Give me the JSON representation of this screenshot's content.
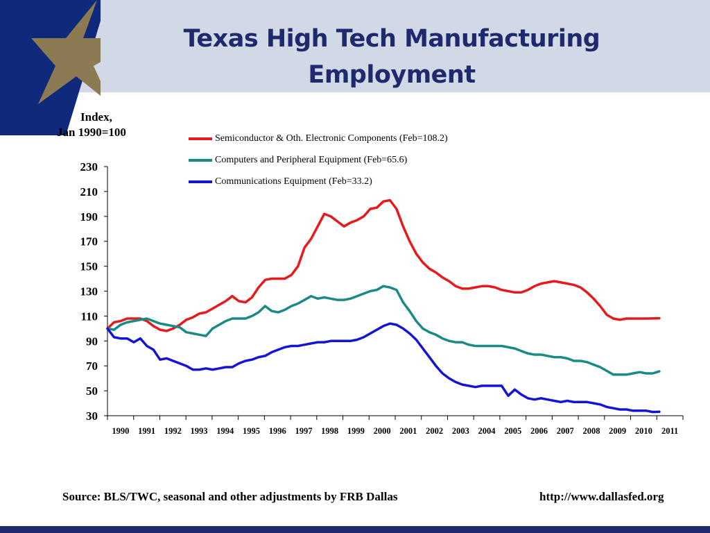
{
  "slide": {
    "title_line1": "Texas High Tech Manufacturing",
    "title_line2": "Employment"
  },
  "colors": {
    "header_bg": "#d1d9e6",
    "brand_blue": "#1f2a6e",
    "star_gold": "#8c7a52",
    "corner_blue": "#0f2a7a"
  },
  "icons": {
    "logo": "star-icon"
  },
  "y_unit": {
    "line1": "Index,",
    "line2": "Jan 1990=100"
  },
  "source": "Source: BLS/TWC, seasonal and other adjustments by FRB Dallas",
  "url": "http://www.dallasfed.org",
  "chart_data": {
    "type": "line",
    "ylim": [
      30,
      230
    ],
    "xlim": [
      1990,
      2011.9
    ],
    "y_ticks": [
      30,
      50,
      70,
      90,
      110,
      130,
      150,
      170,
      190,
      210,
      230
    ],
    "x_tick_labels": [
      "1990",
      "1991",
      "1992",
      "1993",
      "1994",
      "1995",
      "1996",
      "1997",
      "1998",
      "1999",
      "2000",
      "2001",
      "2002",
      "2003",
      "2004",
      "2005",
      "2006",
      "2007",
      "2008",
      "2009",
      "2010",
      "2011"
    ],
    "grid": false,
    "legend_position": "top-center",
    "series": [
      {
        "name": "Semiconductor & Oth. Electronic Components (Feb=108.2)",
        "color": "#e8191c",
        "points": [
          [
            1990.0,
            100
          ],
          [
            1990.25,
            105
          ],
          [
            1990.5,
            106
          ],
          [
            1990.75,
            108
          ],
          [
            1991.0,
            108
          ],
          [
            1991.25,
            108
          ],
          [
            1991.5,
            106
          ],
          [
            1991.75,
            102
          ],
          [
            1992.0,
            99
          ],
          [
            1992.25,
            98
          ],
          [
            1992.5,
            100
          ],
          [
            1992.75,
            103
          ],
          [
            1993.0,
            107
          ],
          [
            1993.25,
            109
          ],
          [
            1993.5,
            112
          ],
          [
            1993.75,
            113
          ],
          [
            1994.0,
            116
          ],
          [
            1994.25,
            119
          ],
          [
            1994.5,
            122
          ],
          [
            1994.75,
            126
          ],
          [
            1995.0,
            122
          ],
          [
            1995.25,
            121
          ],
          [
            1995.5,
            125
          ],
          [
            1995.75,
            133
          ],
          [
            1996.0,
            139
          ],
          [
            1996.25,
            140
          ],
          [
            1996.5,
            140
          ],
          [
            1996.75,
            140
          ],
          [
            1997.0,
            143
          ],
          [
            1997.25,
            150
          ],
          [
            1997.5,
            165
          ],
          [
            1997.75,
            172
          ],
          [
            1998.0,
            182
          ],
          [
            1998.25,
            192
          ],
          [
            1998.5,
            190
          ],
          [
            1998.75,
            186
          ],
          [
            1999.0,
            182
          ],
          [
            1999.25,
            185
          ],
          [
            1999.5,
            187
          ],
          [
            1999.75,
            190
          ],
          [
            2000.0,
            196
          ],
          [
            2000.25,
            197
          ],
          [
            2000.5,
            202
          ],
          [
            2000.75,
            203
          ],
          [
            2001.0,
            196
          ],
          [
            2001.25,
            182
          ],
          [
            2001.5,
            170
          ],
          [
            2001.75,
            160
          ],
          [
            2002.0,
            153
          ],
          [
            2002.25,
            148
          ],
          [
            2002.5,
            145
          ],
          [
            2002.75,
            141
          ],
          [
            2003.0,
            138
          ],
          [
            2003.25,
            134
          ],
          [
            2003.5,
            132
          ],
          [
            2003.75,
            132
          ],
          [
            2004.0,
            133
          ],
          [
            2004.25,
            134
          ],
          [
            2004.5,
            134
          ],
          [
            2004.75,
            133
          ],
          [
            2005.0,
            131
          ],
          [
            2005.25,
            130
          ],
          [
            2005.5,
            129
          ],
          [
            2005.75,
            129
          ],
          [
            2006.0,
            131
          ],
          [
            2006.25,
            134
          ],
          [
            2006.5,
            136
          ],
          [
            2006.75,
            137
          ],
          [
            2007.0,
            138
          ],
          [
            2007.25,
            137
          ],
          [
            2007.5,
            136
          ],
          [
            2007.75,
            135
          ],
          [
            2008.0,
            133
          ],
          [
            2008.25,
            129
          ],
          [
            2008.5,
            124
          ],
          [
            2008.75,
            118
          ],
          [
            2009.0,
            111
          ],
          [
            2009.25,
            108
          ],
          [
            2009.5,
            107
          ],
          [
            2009.75,
            108
          ],
          [
            2010.0,
            108
          ],
          [
            2010.25,
            108
          ],
          [
            2010.5,
            108
          ],
          [
            2011.0,
            108.2
          ]
        ]
      },
      {
        "name": "Computers and Peripheral Equipment (Feb=65.6)",
        "color": "#1a8a85",
        "points": [
          [
            1990.0,
            100
          ],
          [
            1990.25,
            99
          ],
          [
            1990.5,
            103
          ],
          [
            1990.75,
            105
          ],
          [
            1991.0,
            106
          ],
          [
            1991.25,
            107
          ],
          [
            1991.5,
            108
          ],
          [
            1991.75,
            106
          ],
          [
            1992.0,
            104
          ],
          [
            1992.25,
            103
          ],
          [
            1992.5,
            102
          ],
          [
            1992.75,
            101
          ],
          [
            1993.0,
            97
          ],
          [
            1993.25,
            96
          ],
          [
            1993.5,
            95
          ],
          [
            1993.75,
            94
          ],
          [
            1994.0,
            100
          ],
          [
            1994.25,
            103
          ],
          [
            1994.5,
            106
          ],
          [
            1994.75,
            108
          ],
          [
            1995.0,
            108
          ],
          [
            1995.25,
            108
          ],
          [
            1995.5,
            110
          ],
          [
            1995.75,
            113
          ],
          [
            1996.0,
            118
          ],
          [
            1996.25,
            114
          ],
          [
            1996.5,
            113
          ],
          [
            1996.75,
            115
          ],
          [
            1997.0,
            118
          ],
          [
            1997.25,
            120
          ],
          [
            1997.5,
            123
          ],
          [
            1997.75,
            126
          ],
          [
            1998.0,
            124
          ],
          [
            1998.25,
            125
          ],
          [
            1998.5,
            124
          ],
          [
            1998.75,
            123
          ],
          [
            1999.0,
            123
          ],
          [
            1999.25,
            124
          ],
          [
            1999.5,
            126
          ],
          [
            1999.75,
            128
          ],
          [
            2000.0,
            130
          ],
          [
            2000.25,
            131
          ],
          [
            2000.5,
            134
          ],
          [
            2000.75,
            133
          ],
          [
            2001.0,
            131
          ],
          [
            2001.25,
            121
          ],
          [
            2001.5,
            114
          ],
          [
            2001.75,
            106
          ],
          [
            2002.0,
            100
          ],
          [
            2002.25,
            97
          ],
          [
            2002.5,
            95
          ],
          [
            2002.75,
            92
          ],
          [
            2003.0,
            90
          ],
          [
            2003.25,
            89
          ],
          [
            2003.5,
            89
          ],
          [
            2003.75,
            87
          ],
          [
            2004.0,
            86
          ],
          [
            2004.25,
            86
          ],
          [
            2004.5,
            86
          ],
          [
            2004.75,
            86
          ],
          [
            2005.0,
            86
          ],
          [
            2005.25,
            85
          ],
          [
            2005.5,
            84
          ],
          [
            2005.75,
            82
          ],
          [
            2006.0,
            80
          ],
          [
            2006.25,
            79
          ],
          [
            2006.5,
            79
          ],
          [
            2006.75,
            78
          ],
          [
            2007.0,
            77
          ],
          [
            2007.25,
            77
          ],
          [
            2007.5,
            76
          ],
          [
            2007.75,
            74
          ],
          [
            2008.0,
            74
          ],
          [
            2008.25,
            73
          ],
          [
            2008.5,
            71
          ],
          [
            2008.75,
            69
          ],
          [
            2009.0,
            66
          ],
          [
            2009.25,
            63
          ],
          [
            2009.5,
            63
          ],
          [
            2009.75,
            63
          ],
          [
            2010.0,
            64
          ],
          [
            2010.25,
            65
          ],
          [
            2010.5,
            64
          ],
          [
            2010.75,
            64
          ],
          [
            2011.0,
            65.6
          ]
        ]
      },
      {
        "name": "Communications Equipment (Feb=33.2)",
        "color": "#1414d6",
        "points": [
          [
            1990.0,
            100
          ],
          [
            1990.25,
            93
          ],
          [
            1990.5,
            92
          ],
          [
            1990.75,
            92
          ],
          [
            1991.0,
            89
          ],
          [
            1991.25,
            92
          ],
          [
            1991.5,
            86
          ],
          [
            1991.75,
            83
          ],
          [
            1992.0,
            75
          ],
          [
            1992.25,
            76
          ],
          [
            1992.5,
            74
          ],
          [
            1992.75,
            72
          ],
          [
            1993.0,
            70
          ],
          [
            1993.25,
            67
          ],
          [
            1993.5,
            67
          ],
          [
            1993.75,
            68
          ],
          [
            1994.0,
            67
          ],
          [
            1994.25,
            68
          ],
          [
            1994.5,
            69
          ],
          [
            1994.75,
            69
          ],
          [
            1995.0,
            72
          ],
          [
            1995.25,
            74
          ],
          [
            1995.5,
            75
          ],
          [
            1995.75,
            77
          ],
          [
            1996.0,
            78
          ],
          [
            1996.25,
            81
          ],
          [
            1996.5,
            83
          ],
          [
            1996.75,
            85
          ],
          [
            1997.0,
            86
          ],
          [
            1997.25,
            86
          ],
          [
            1997.5,
            87
          ],
          [
            1997.75,
            88
          ],
          [
            1998.0,
            89
          ],
          [
            1998.25,
            89
          ],
          [
            1998.5,
            90
          ],
          [
            1998.75,
            90
          ],
          [
            1999.0,
            90
          ],
          [
            1999.25,
            90
          ],
          [
            1999.5,
            91
          ],
          [
            1999.75,
            93
          ],
          [
            2000.0,
            96
          ],
          [
            2000.25,
            99
          ],
          [
            2000.5,
            102
          ],
          [
            2000.75,
            104
          ],
          [
            2001.0,
            103
          ],
          [
            2001.25,
            100
          ],
          [
            2001.5,
            96
          ],
          [
            2001.75,
            91
          ],
          [
            2002.0,
            84
          ],
          [
            2002.25,
            77
          ],
          [
            2002.5,
            70
          ],
          [
            2002.75,
            64
          ],
          [
            2003.0,
            60
          ],
          [
            2003.25,
            57
          ],
          [
            2003.5,
            55
          ],
          [
            2003.75,
            54
          ],
          [
            2004.0,
            53
          ],
          [
            2004.25,
            54
          ],
          [
            2004.5,
            54
          ],
          [
            2004.75,
            54
          ],
          [
            2005.0,
            54
          ],
          [
            2005.25,
            46
          ],
          [
            2005.5,
            51
          ],
          [
            2005.75,
            47
          ],
          [
            2006.0,
            44
          ],
          [
            2006.25,
            43
          ],
          [
            2006.5,
            44
          ],
          [
            2006.75,
            43
          ],
          [
            2007.0,
            42
          ],
          [
            2007.25,
            41
          ],
          [
            2007.5,
            42
          ],
          [
            2007.75,
            41
          ],
          [
            2008.0,
            41
          ],
          [
            2008.25,
            41
          ],
          [
            2008.5,
            40
          ],
          [
            2008.75,
            39
          ],
          [
            2009.0,
            37
          ],
          [
            2009.25,
            36
          ],
          [
            2009.5,
            35
          ],
          [
            2009.75,
            35
          ],
          [
            2010.0,
            34
          ],
          [
            2010.25,
            34
          ],
          [
            2010.5,
            34
          ],
          [
            2010.75,
            33
          ],
          [
            2011.0,
            33.2
          ]
        ]
      }
    ]
  }
}
